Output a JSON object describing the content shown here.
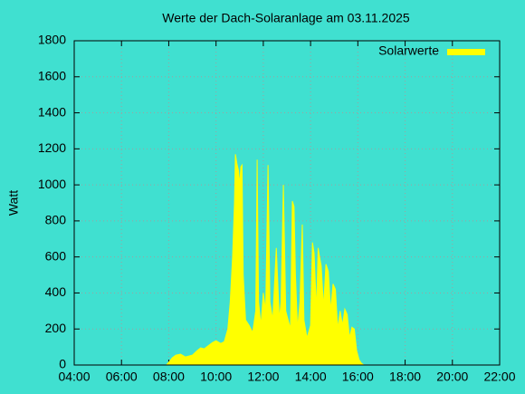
{
  "chart_data": {
    "type": "area",
    "title": "Werte der Dach-Solaranlage am 03.11.2025",
    "y_label": "Watt",
    "x": [
      7.9,
      8.0,
      8.15,
      8.3,
      8.5,
      8.7,
      8.85,
      9.0,
      9.2,
      9.35,
      9.5,
      9.7,
      9.85,
      10.0,
      10.2,
      10.35,
      10.5,
      10.6,
      10.7,
      10.78,
      10.82,
      10.88,
      10.95,
      11.0,
      11.05,
      11.1,
      11.15,
      11.25,
      11.4,
      11.55,
      11.68,
      11.74,
      11.8,
      11.9,
      12.0,
      12.1,
      12.2,
      12.28,
      12.4,
      12.55,
      12.68,
      12.75,
      12.85,
      12.95,
      13.05,
      13.15,
      13.23,
      13.3,
      13.36,
      13.45,
      13.55,
      13.65,
      13.72,
      13.85,
      14.0,
      14.08,
      14.15,
      14.25,
      14.32,
      14.38,
      14.45,
      14.55,
      14.65,
      14.75,
      14.85,
      14.95,
      15.05,
      15.15,
      15.25,
      15.35,
      15.45,
      15.55,
      15.65,
      15.75,
      15.85,
      15.95,
      16.05,
      16.15,
      16.25
    ],
    "series": [
      {
        "name": "Solarwerte",
        "color": "#ffff00",
        "values": [
          0,
          15,
          40,
          55,
          60,
          45,
          50,
          55,
          80,
          95,
          90,
          110,
          125,
          135,
          120,
          130,
          200,
          350,
          600,
          900,
          1170,
          1120,
          1080,
          1000,
          1100,
          1110,
          500,
          250,
          220,
          180,
          300,
          1140,
          350,
          220,
          400,
          300,
          1110,
          350,
          250,
          650,
          250,
          350,
          1000,
          300,
          250,
          200,
          910,
          880,
          500,
          200,
          350,
          780,
          250,
          150,
          220,
          680,
          620,
          300,
          650,
          600,
          550,
          320,
          560,
          520,
          300,
          450,
          420,
          200,
          300,
          220,
          310,
          280,
          150,
          210,
          200,
          80,
          30,
          10,
          0
        ]
      }
    ],
    "xlim": [
      4,
      22
    ],
    "xticks": [
      {
        "value": 4,
        "label": "04:00"
      },
      {
        "value": 6,
        "label": "06:00"
      },
      {
        "value": 8,
        "label": "08:00"
      },
      {
        "value": 10,
        "label": "10:00"
      },
      {
        "value": 12,
        "label": "12:00"
      },
      {
        "value": 14,
        "label": "14:00"
      },
      {
        "value": 16,
        "label": "16:00"
      },
      {
        "value": 18,
        "label": "18:00"
      },
      {
        "value": 20,
        "label": "20:00"
      },
      {
        "value": 22,
        "label": "22:00"
      }
    ],
    "ylim": [
      0,
      1800
    ],
    "yticks": [
      0,
      200,
      400,
      600,
      800,
      1000,
      1200,
      1400,
      1600,
      1800
    ],
    "grid": true,
    "legend": "top-right"
  }
}
